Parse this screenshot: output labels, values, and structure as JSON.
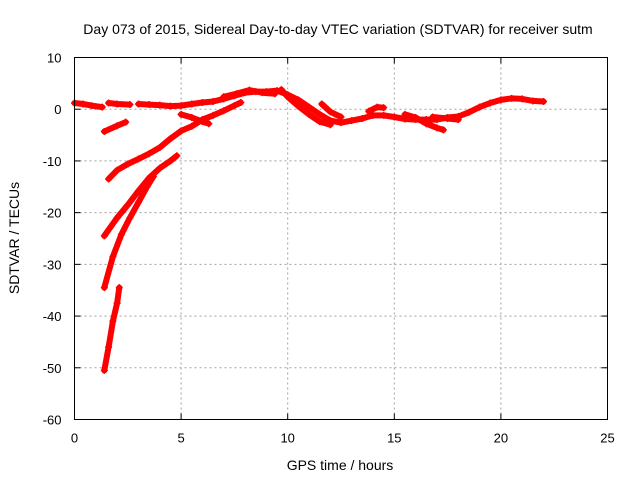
{
  "chart_data": {
    "type": "scatter",
    "title": "Day 073 of 2015, Sidereal Day-to-day VTEC variation (SDTVAR) for receiver sutm",
    "xlabel": "GPS time / hours",
    "ylabel": "SDTVAR / TECUs",
    "xlim": [
      0,
      25
    ],
    "ylim": [
      -60,
      10
    ],
    "xticks": [
      0,
      5,
      10,
      15,
      20,
      25
    ],
    "xtick_labels": [
      "0",
      "5",
      "10",
      "15",
      "20",
      "25"
    ],
    "yticks": [
      10,
      0,
      -10,
      -20,
      -30,
      -40,
      -50,
      -60
    ],
    "ytick_labels": [
      "10",
      "0",
      "-10",
      "-20",
      "-30",
      "-40",
      "-50",
      "-60"
    ],
    "grid": true,
    "marker": "+",
    "color": "#ff0000",
    "series": [
      {
        "name": "arc-start",
        "points": [
          [
            0.0,
            1.2
          ],
          [
            0.4,
            1.0
          ],
          [
            0.8,
            0.7
          ],
          [
            1.3,
            0.4
          ]
        ]
      },
      {
        "name": "arc-mid-1",
        "points": [
          [
            1.6,
            1.2
          ],
          [
            2.0,
            1.0
          ],
          [
            2.6,
            0.9
          ]
        ]
      },
      {
        "name": "arc-main",
        "points": [
          [
            3.0,
            1.0
          ],
          [
            3.5,
            0.9
          ],
          [
            4.0,
            0.8
          ],
          [
            4.5,
            0.6
          ],
          [
            5.0,
            0.7
          ],
          [
            5.5,
            1.0
          ],
          [
            6.0,
            1.3
          ],
          [
            6.5,
            1.5
          ],
          [
            7.0,
            2.0
          ],
          [
            7.5,
            2.6
          ],
          [
            8.0,
            3.2
          ],
          [
            8.5,
            3.4
          ],
          [
            9.0,
            3.4
          ],
          [
            9.5,
            3.6
          ],
          [
            10.0,
            2.8
          ],
          [
            10.5,
            1.8
          ],
          [
            11.0,
            0.4
          ],
          [
            11.5,
            -1.0
          ],
          [
            12.0,
            -2.2
          ],
          [
            12.5,
            -2.6
          ],
          [
            13.0,
            -2.2
          ],
          [
            13.5,
            -1.8
          ],
          [
            14.0,
            -1.2
          ],
          [
            14.5,
            -1.2
          ],
          [
            15.0,
            -1.5
          ],
          [
            15.5,
            -1.9
          ],
          [
            16.0,
            -2.0
          ],
          [
            16.5,
            -2.0
          ],
          [
            17.0,
            -2.0
          ],
          [
            17.5,
            -1.6
          ],
          [
            18.0,
            -1.4
          ],
          [
            18.5,
            -0.6
          ],
          [
            19.0,
            0.4
          ],
          [
            19.5,
            1.2
          ],
          [
            20.0,
            1.8
          ],
          [
            20.5,
            2.1
          ],
          [
            21.0,
            2.0
          ],
          [
            21.5,
            1.6
          ],
          [
            22.0,
            1.5
          ]
        ]
      },
      {
        "name": "arc-branch-a",
        "points": [
          [
            9.7,
            3.8
          ],
          [
            10.0,
            2.4
          ],
          [
            10.5,
            0.6
          ],
          [
            11.0,
            -1.0
          ],
          [
            11.5,
            -2.4
          ],
          [
            12.0,
            -3.0
          ]
        ]
      },
      {
        "name": "arc-branch-b",
        "points": [
          [
            11.6,
            1.0
          ],
          [
            12.0,
            -0.5
          ],
          [
            12.5,
            -1.5
          ]
        ]
      },
      {
        "name": "arc-branch-c",
        "points": [
          [
            13.8,
            -0.4
          ],
          [
            14.2,
            0.4
          ],
          [
            14.5,
            0.3
          ]
        ]
      },
      {
        "name": "arc-branch-d",
        "points": [
          [
            15.5,
            -1.0
          ],
          [
            16.0,
            -1.6
          ],
          [
            16.5,
            -2.8
          ],
          [
            17.0,
            -3.6
          ],
          [
            17.3,
            -4.0
          ]
        ]
      },
      {
        "name": "arc-branch-e",
        "points": [
          [
            16.8,
            -1.5
          ],
          [
            17.5,
            -1.8
          ],
          [
            18.0,
            -2.0
          ]
        ]
      },
      {
        "name": "arc-branch-f",
        "points": [
          [
            5.0,
            -1.0
          ],
          [
            5.5,
            -1.6
          ],
          [
            6.0,
            -2.4
          ],
          [
            6.3,
            -2.8
          ]
        ]
      },
      {
        "name": "arc-branch-g",
        "points": [
          [
            7.0,
            2.4
          ],
          [
            7.6,
            3.0
          ],
          [
            8.2,
            3.7
          ],
          [
            8.8,
            3.2
          ],
          [
            9.4,
            3.0
          ]
        ]
      },
      {
        "name": "arc-short-a",
        "points": [
          [
            1.4,
            -4.3
          ],
          [
            2.0,
            -3.2
          ],
          [
            2.4,
            -2.5
          ]
        ]
      },
      {
        "name": "arc-b",
        "points": [
          [
            1.6,
            -13.5
          ],
          [
            2.0,
            -11.8
          ],
          [
            2.5,
            -10.6
          ],
          [
            3.0,
            -9.6
          ],
          [
            3.5,
            -8.6
          ],
          [
            4.0,
            -7.4
          ],
          [
            4.5,
            -5.7
          ],
          [
            5.0,
            -4.2
          ],
          [
            5.5,
            -3.3
          ],
          [
            6.0,
            -2.0
          ],
          [
            6.5,
            -1.2
          ],
          [
            7.0,
            -0.3
          ],
          [
            7.5,
            0.7
          ],
          [
            7.8,
            1.3
          ]
        ]
      },
      {
        "name": "arc-c",
        "points": [
          [
            1.4,
            -24.5
          ],
          [
            2.0,
            -21.0
          ],
          [
            2.5,
            -18.5
          ],
          [
            3.0,
            -15.8
          ],
          [
            3.5,
            -13.3
          ],
          [
            4.0,
            -11.4
          ],
          [
            4.5,
            -10.0
          ],
          [
            4.8,
            -9.0
          ]
        ]
      },
      {
        "name": "arc-d",
        "points": [
          [
            1.4,
            -34.5
          ],
          [
            1.8,
            -28.5
          ],
          [
            2.2,
            -24.2
          ],
          [
            2.6,
            -21.0
          ],
          [
            3.0,
            -18.0
          ],
          [
            3.4,
            -15.0
          ],
          [
            3.7,
            -13.0
          ]
        ]
      },
      {
        "name": "arc-e",
        "points": [
          [
            1.4,
            -50.5
          ],
          [
            1.6,
            -46.0
          ],
          [
            1.8,
            -41.0
          ],
          [
            2.0,
            -37.5
          ],
          [
            2.1,
            -34.5
          ]
        ]
      }
    ]
  }
}
